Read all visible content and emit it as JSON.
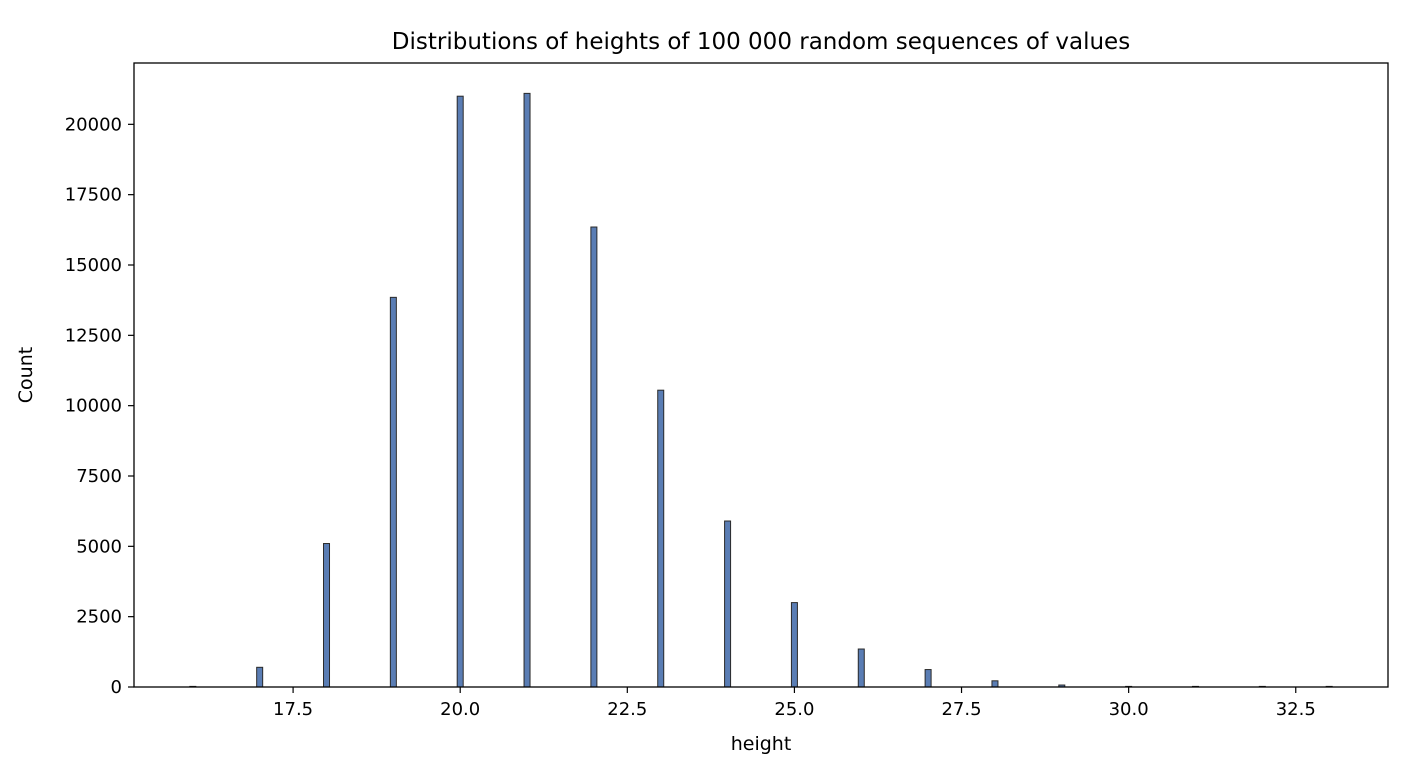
{
  "chart_data": {
    "type": "bar",
    "title": "Distributions of heights of 100 000 random sequences of values",
    "xlabel": "height",
    "ylabel": "Count",
    "xlim": [
      15.12,
      33.88
    ],
    "ylim": [
      0,
      22180
    ],
    "x_ticks": [
      "17.5",
      "20.0",
      "22.5",
      "25.0",
      "27.5",
      "30.0",
      "32.5"
    ],
    "y_ticks": [
      "0",
      "2500",
      "5000",
      "7500",
      "10000",
      "12500",
      "15000",
      "17500",
      "20000"
    ],
    "grid": false,
    "legend": "none",
    "bar_color": "#5a7db4",
    "edge_color": "#2a2a2a",
    "series": [
      {
        "x": [
          16,
          17,
          18,
          19,
          20,
          21,
          22,
          23,
          24,
          25,
          26,
          27,
          28,
          29,
          30,
          31,
          32,
          33
        ],
        "values": [
          14,
          700,
          5100,
          13850,
          21000,
          21100,
          16350,
          10550,
          5900,
          3000,
          1350,
          620,
          220,
          70,
          20,
          6,
          2,
          1
        ]
      }
    ]
  }
}
